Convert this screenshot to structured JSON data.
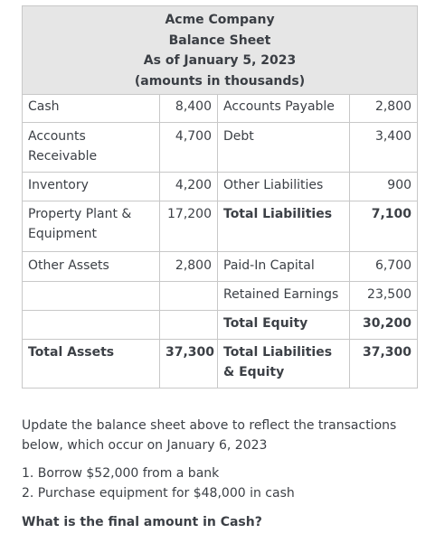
{
  "sheet": {
    "title": [
      "Acme Company",
      "Balance Sheet",
      "As of January 5, 2023",
      "(amounts in thousands)"
    ],
    "rows": [
      {
        "assetLabel": "Cash",
        "assetValue": "8,400",
        "liabLabel": "Accounts Payable",
        "liabValue": "2,800"
      },
      {
        "assetLabel": "Accounts Receivable",
        "assetValue": "4,700",
        "liabLabel": "Debt",
        "liabValue": "3,400"
      },
      {
        "assetLabel": "Inventory",
        "assetValue": "4,200",
        "liabLabel": "Other Liabilities",
        "liabValue": "900"
      },
      {
        "assetLabel": "Property Plant & Equipment",
        "assetValue": "17,200",
        "liabLabel": "Total Liabilities",
        "liabValue": "7,100"
      },
      {
        "assetLabel": "Other Assets",
        "assetValue": "2,800",
        "liabLabel": "Paid-In Capital",
        "liabValue": "6,700"
      },
      {
        "assetLabel": "",
        "assetValue": "",
        "liabLabel": "Retained Earnings",
        "liabValue": "23,500"
      },
      {
        "assetLabel": "",
        "assetValue": "",
        "liabLabel": "Total Equity",
        "liabValue": "30,200"
      },
      {
        "assetLabel": "Total Assets",
        "assetValue": "37,300",
        "liabLabel": "Total Liabilities & Equity",
        "liabValue": "37,300"
      }
    ]
  },
  "question": {
    "intro": "Update the balance sheet above to reflect the transactions below, which occur on January 6, 2023",
    "items": [
      "1. Borrow $52,000 from a bank",
      "2. Purchase equipment for $48,000 in cash"
    ],
    "ask": "What is the final amount in Cash?"
  }
}
